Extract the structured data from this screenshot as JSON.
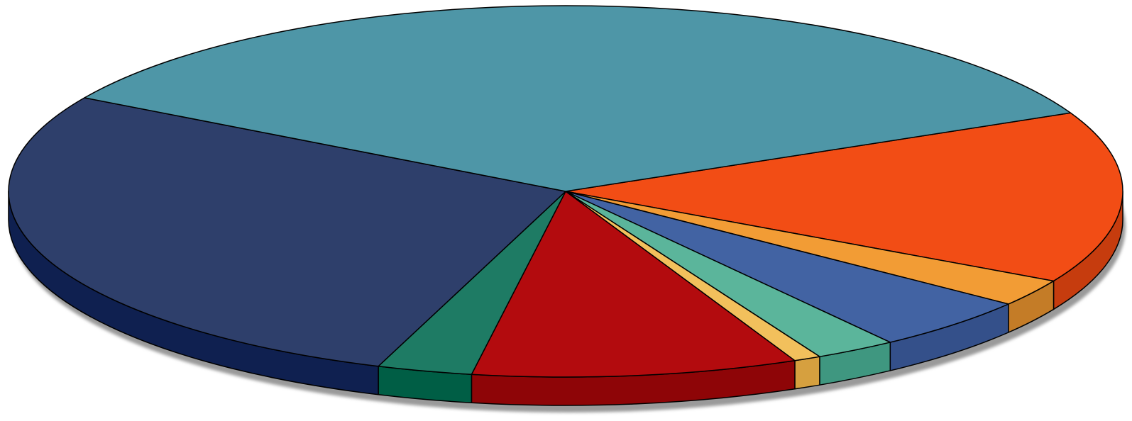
{
  "chart_data": {
    "type": "pie",
    "style": "3d",
    "start_angle_deg": -25,
    "direction": "clockwise",
    "values": [
      19.0,
      3.0,
      6.0,
      3.0,
      1.0,
      12.0,
      3.5,
      35.5,
      44.0
    ],
    "colors": [
      "#F24D15",
      "#F29C35",
      "#4263A3",
      "#5BB59B",
      "#F2C05C",
      "#B30B0E",
      "#1E7B64",
      "#2E3F6B",
      "#4E96A7"
    ],
    "side_colors": [
      "#C63C0E",
      "#C47C27",
      "#34508A",
      "#3F9780",
      "#D6A03F",
      "#8E0507",
      "#005E45",
      "#0F2050",
      "#2E7787"
    ],
    "title": "",
    "legend": "none",
    "data_labels": "none"
  }
}
